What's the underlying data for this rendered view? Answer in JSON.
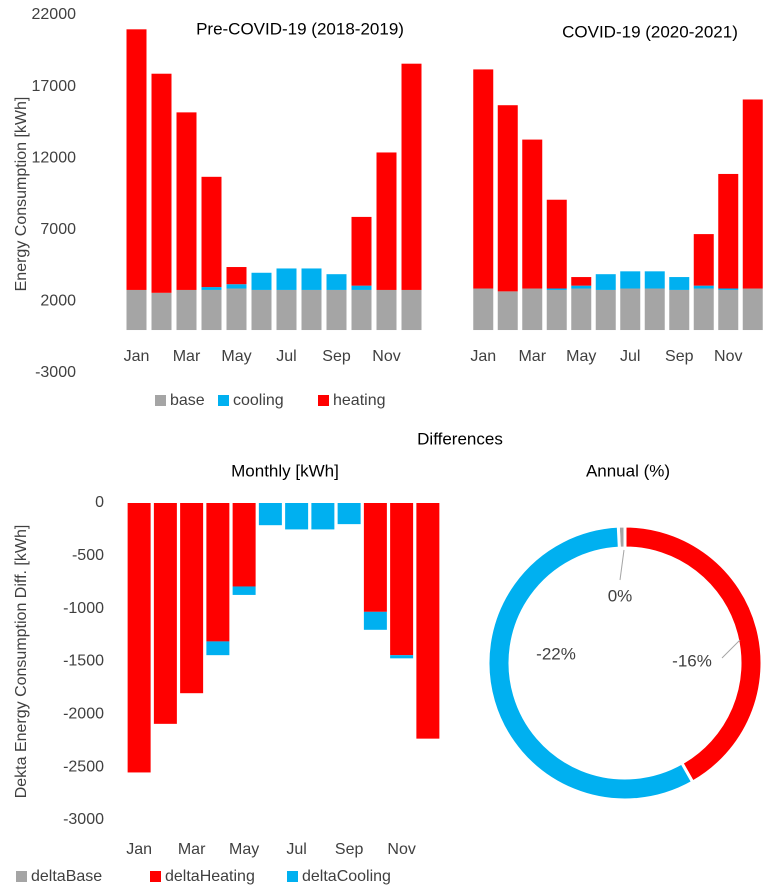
{
  "chart_data": [
    {
      "type": "stacked-bar",
      "title": "Pre-COVID-19 (2018-2019)",
      "y_label": "Energy Consumption [kWh]",
      "categories": [
        "Jan",
        null,
        "Mar",
        null,
        "May",
        null,
        "Jul",
        null,
        "Sep",
        null,
        "Nov",
        null
      ],
      "series": [
        {
          "name": "base",
          "color": "#a5a5a5",
          "values": [
            2800,
            2600,
            2800,
            2800,
            2900,
            2800,
            2800,
            2800,
            2800,
            2800,
            2800,
            2800
          ]
        },
        {
          "name": "cooling",
          "color": "#00b0f0",
          "values": [
            0,
            0,
            0,
            200,
            300,
            1200,
            1500,
            1500,
            1100,
            300,
            0,
            0
          ]
        },
        {
          "name": "heating",
          "color": "#ff0000",
          "values": [
            18200,
            15300,
            12400,
            7700,
            1200,
            0,
            0,
            0,
            0,
            4800,
            9600,
            15800
          ]
        }
      ],
      "ylim": [
        -3000,
        22000
      ],
      "yticks": [
        -3000,
        2000,
        7000,
        12000,
        17000,
        22000
      ],
      "legend": "bottom"
    },
    {
      "type": "stacked-bar",
      "title": "COVID-19 (2020-2021)",
      "categories": [
        "Jan",
        null,
        "Mar",
        null,
        "May",
        null,
        "Jul",
        null,
        "Sep",
        null,
        "Nov",
        null
      ],
      "series": [
        {
          "name": "base",
          "color": "#a5a5a5",
          "values": [
            2900,
            2700,
            2900,
            2800,
            2900,
            2800,
            2900,
            2900,
            2800,
            2900,
            2800,
            2900
          ]
        },
        {
          "name": "cooling",
          "color": "#00b0f0",
          "values": [
            0,
            0,
            0,
            100,
            200,
            1100,
            1200,
            1200,
            900,
            200,
            100,
            0
          ]
        },
        {
          "name": "heating",
          "color": "#ff0000",
          "values": [
            15300,
            13000,
            10400,
            6200,
            600,
            0,
            0,
            0,
            0,
            3600,
            8000,
            13200
          ]
        }
      ],
      "ylim": [
        -3000,
        22000
      ]
    },
    {
      "type": "stacked-bar",
      "suptitle": "Differences",
      "title": "Monthly [kWh]",
      "y_label": "Dekta Energy Consumption Diff. [kWh]",
      "categories": [
        "Jan",
        null,
        "Mar",
        null,
        "May",
        null,
        "Jul",
        null,
        "Sep",
        null,
        "Nov",
        null
      ],
      "series": [
        {
          "name": "deltaBase",
          "color": "#a5a5a5",
          "values": [
            0,
            0,
            0,
            0,
            0,
            0,
            0,
            0,
            0,
            0,
            0,
            0
          ]
        },
        {
          "name": "deltaHeating",
          "color": "#ff0000",
          "values": [
            -2550,
            -2090,
            -1800,
            -1310,
            -790,
            0,
            0,
            0,
            0,
            -1030,
            -1440,
            -2230
          ]
        },
        {
          "name": "deltaCooling",
          "color": "#00b0f0",
          "values": [
            0,
            0,
            0,
            -130,
            -80,
            -210,
            -250,
            -250,
            -200,
            -170,
            -30,
            0
          ]
        }
      ],
      "ylim": [
        -3000,
        0
      ],
      "yticks": [
        0,
        -500,
        -1000,
        -1500,
        -2000,
        -2500,
        -3000
      ],
      "legend": "bottom"
    },
    {
      "type": "pie",
      "title": "Annual (%)",
      "values": [
        -0.3,
        -16,
        -22
      ],
      "value_labels": [
        "0%",
        "-16%",
        "-22%"
      ],
      "colors": [
        "#a5a5a5",
        "#ff0000",
        "#00b0f0"
      ]
    }
  ]
}
